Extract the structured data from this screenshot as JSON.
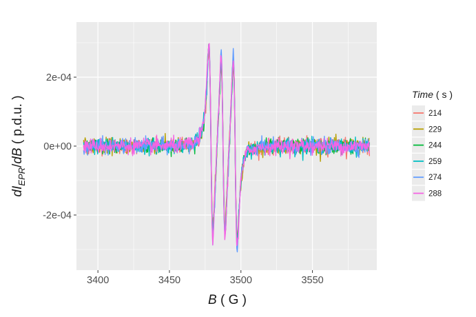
{
  "chart_data": {
    "type": "line",
    "xlabel": {
      "var": "B",
      "unit": "G"
    },
    "ylabel": {
      "prefix": "dI",
      "sub": "EPR",
      "suffix": "/",
      "var2": "dB",
      "unit": "p.d.u."
    },
    "x_ticks": [
      3400,
      3450,
      3500,
      3550
    ],
    "y_ticks": [
      {
        "value": 0.0002,
        "label": "2e-04"
      },
      {
        "value": 0.0,
        "label": "0e+00"
      },
      {
        "value": -0.0002,
        "label": "-2e-04"
      }
    ],
    "xlim": [
      3385,
      3595
    ],
    "ylim": [
      -0.00036,
      0.00036
    ],
    "x_range": [
      3390,
      3590
    ],
    "noise_amplitude": 2e-05,
    "peaks": [
      {
        "center": 3479,
        "amplitude": 0.00033
      },
      {
        "center": 3487.5,
        "amplitude": 0.00031
      },
      {
        "center": 3496,
        "amplitude": 0.00032
      }
    ],
    "peak_width": 2.4,
    "grid": true,
    "legend": {
      "position": "right",
      "title_var": "Time",
      "title_unit": "s"
    },
    "series": [
      {
        "name": "214",
        "color": "#F8766D"
      },
      {
        "name": "229",
        "color": "#B79F00"
      },
      {
        "name": "244",
        "color": "#00BA38"
      },
      {
        "name": "259",
        "color": "#00BFC4"
      },
      {
        "name": "274",
        "color": "#619CFF"
      },
      {
        "name": "288",
        "color": "#F564E3"
      }
    ]
  }
}
